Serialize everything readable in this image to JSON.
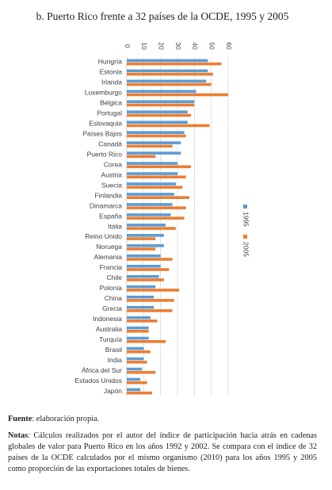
{
  "chart_data": {
    "type": "bar",
    "orientation": "horizontal",
    "title": "b. Puerto Rico frente a 32 países de la OCDE, 1995 y 2005",
    "categories": [
      "Hungría",
      "Estonia",
      "Irlanda",
      "Luxemburgo",
      "Bélgica",
      "Portugal",
      "Eslovaquia",
      "Países Bajos",
      "Canadá",
      "Puerto Rico",
      "Corea",
      "Austria",
      "Suecia",
      "Finlandia",
      "Dinamarca",
      "España",
      "Italia",
      "Reino Unido",
      "Noruega",
      "Alemania",
      "Francia",
      "Chile",
      "Polonia",
      "China",
      "Grecia",
      "Indonesia",
      "Australia",
      "Turquía",
      "Brasil",
      "India",
      "África del Sur",
      "Estados Unidos",
      "Japón"
    ],
    "series": [
      {
        "name": "1995",
        "color": "#5b9bd5",
        "values": [
          48,
          48,
          47,
          41,
          40,
          36,
          36,
          34,
          32,
          32,
          30,
          30,
          29,
          28,
          27,
          26,
          23,
          22,
          22,
          20,
          20,
          19,
          17,
          16,
          16,
          14,
          13,
          13,
          10,
          10,
          9,
          8,
          8
        ]
      },
      {
        "name": "2005",
        "color": "#ed7d31",
        "values": [
          56,
          51,
          50,
          60,
          40,
          38,
          49,
          35,
          27,
          17,
          38,
          35,
          33,
          37,
          35,
          34,
          29,
          17,
          17,
          27,
          25,
          22,
          31,
          28,
          27,
          18,
          13,
          23,
          14,
          12,
          17,
          12,
          15
        ]
      }
    ],
    "xlim": [
      0,
      60
    ],
    "xticks": [
      0,
      10,
      20,
      30,
      40,
      50,
      60
    ],
    "grid": true,
    "legend": "right"
  },
  "source": {
    "label": "Fuente",
    "text": ": elaboración propia."
  },
  "notes": {
    "label": "Notas",
    "text": ": Cálculos realizados por el autor del índice de participación hacia atrás en cadenas globales de valor para Puerto Rico en los años 1992 y 2002. Se compara con el índice de 32 países de la OCDE calculados por el mismo organismo (2010) para los años 1995 y 2005 como proporción de las exportaciones totales de bienes."
  }
}
